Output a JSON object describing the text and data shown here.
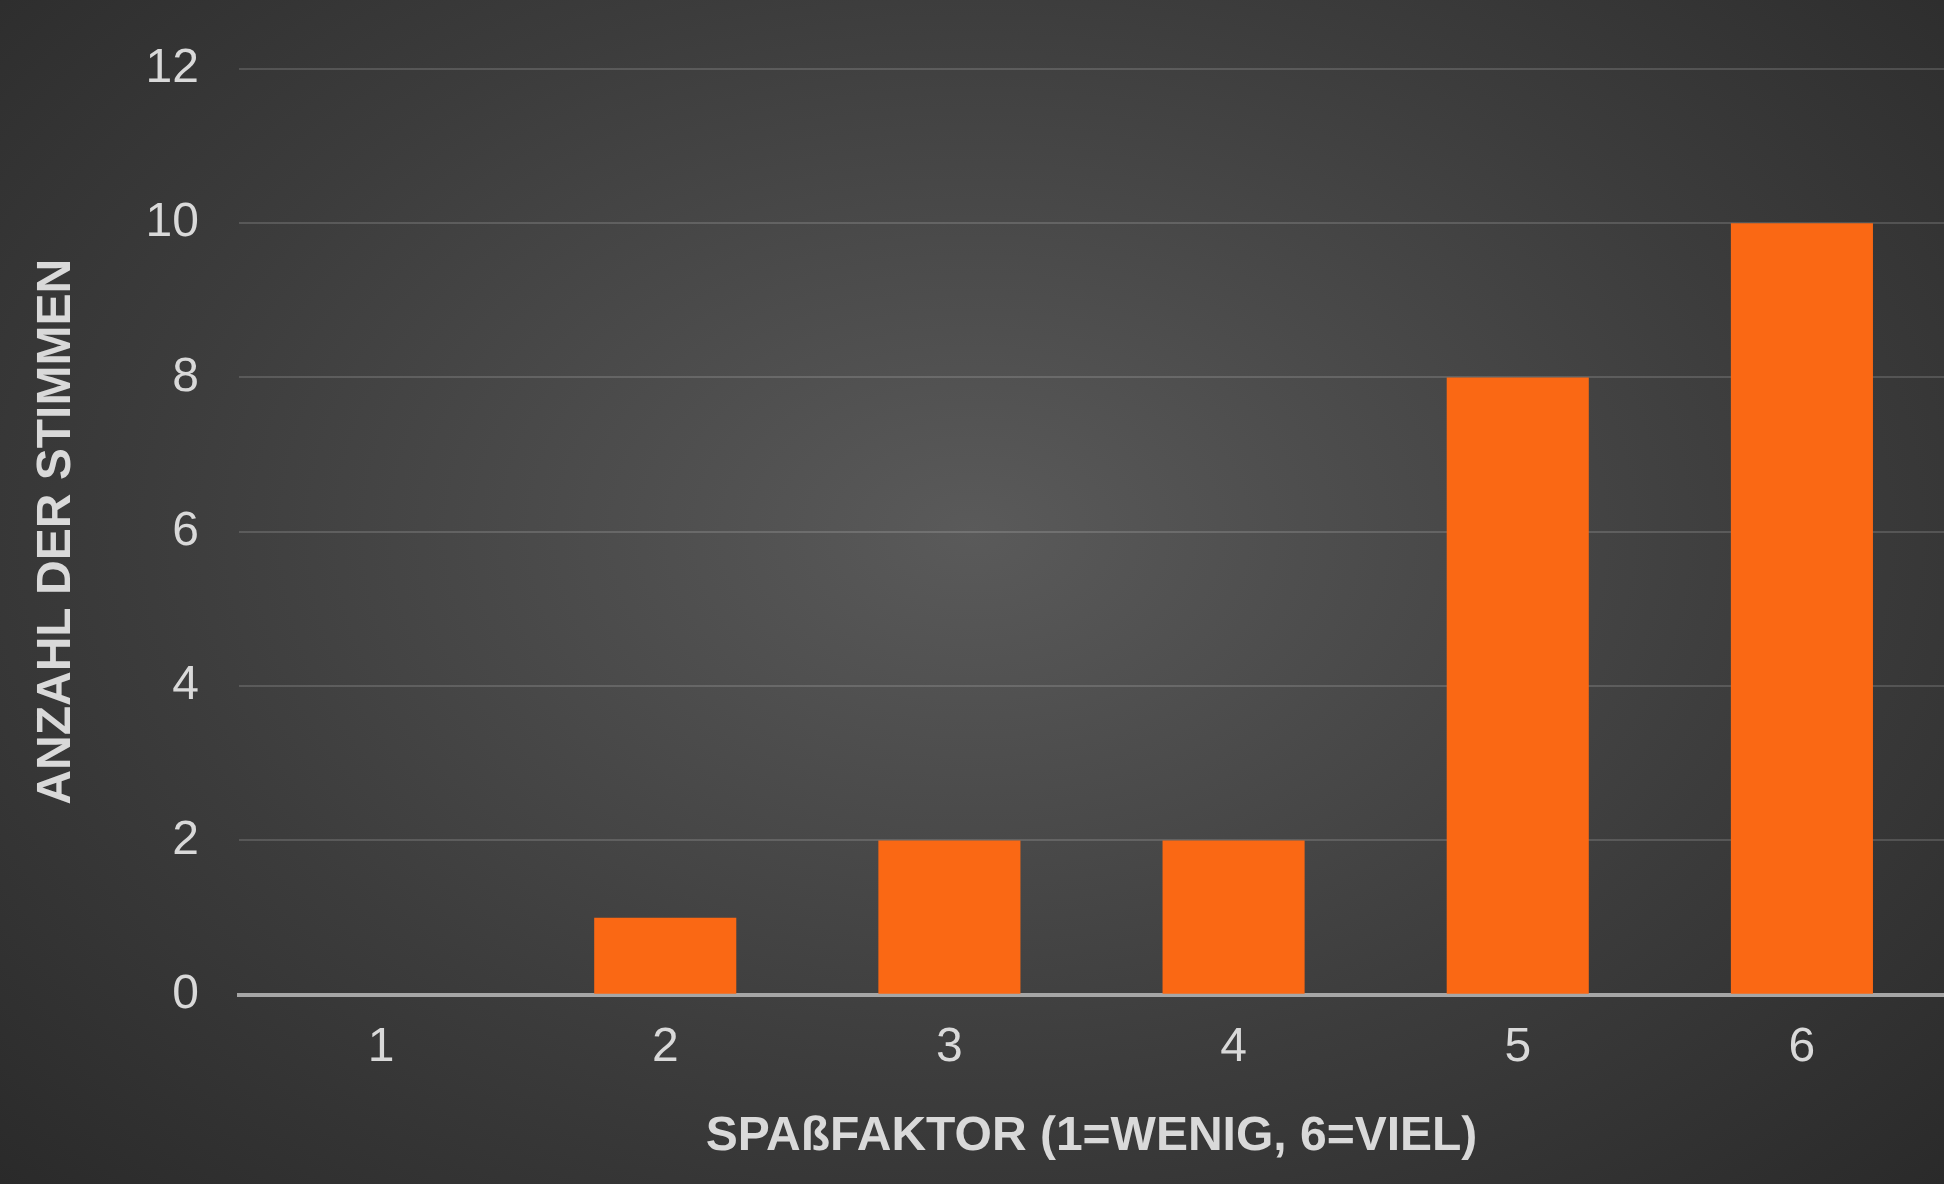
{
  "chart_data": {
    "type": "bar",
    "xlabel": "SPAßFAKTOR (1=WENIG, 6=VIEL)",
    "ylabel": "ANZAHL DER STIMMEN",
    "categories": [
      "1",
      "2",
      "3",
      "4",
      "5",
      "6"
    ],
    "values": [
      0,
      1,
      2,
      2,
      8,
      10
    ],
    "color": "#fa6814",
    "ylim": [
      0,
      12
    ],
    "yticks": [
      0,
      2,
      4,
      6,
      8,
      10,
      12
    ],
    "grid": "y",
    "legend": false
  }
}
